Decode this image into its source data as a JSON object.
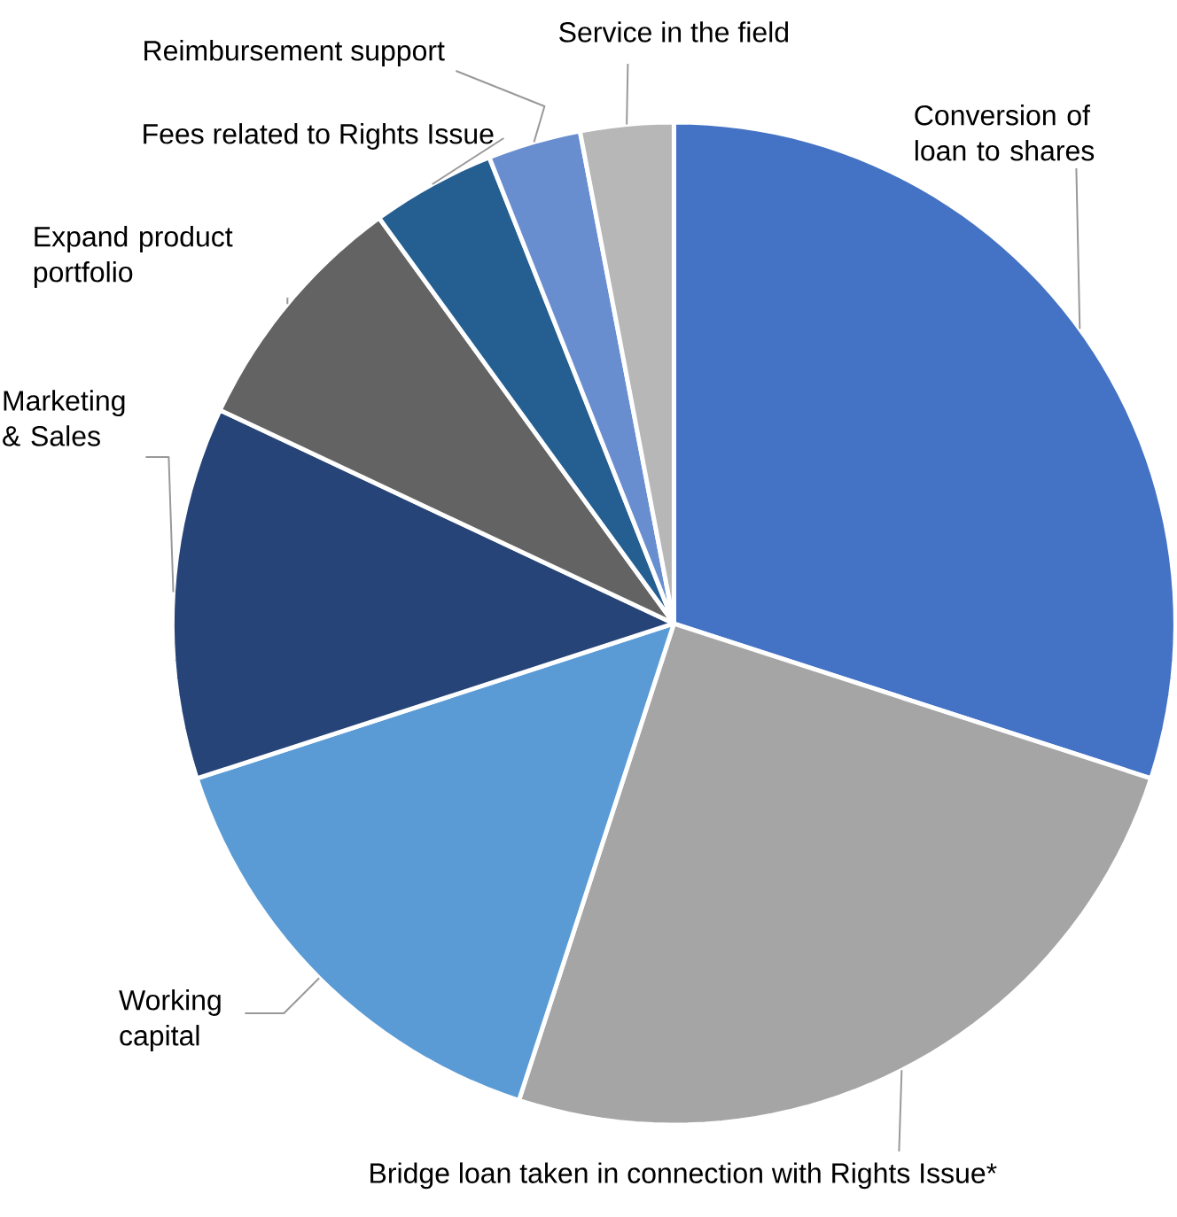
{
  "chart_data": {
    "type": "pie",
    "categories": [
      "Conversion of loan to shares",
      "Bridge loan taken in connection with Rights Issue*",
      "Working capital",
      "Marketing & Sales",
      "Expand product portfolio",
      "Fees related to Rights Issue",
      "Reimbursement support",
      "Service in the field"
    ],
    "values": [
      30,
      25,
      15,
      12,
      8,
      4,
      3,
      3
    ],
    "colors": [
      "#4472c4",
      "#a5a5a5",
      "#5b9bd5",
      "#264478",
      "#636363",
      "#255e91",
      "#698ed0",
      "#b7b7b7"
    ]
  }
}
